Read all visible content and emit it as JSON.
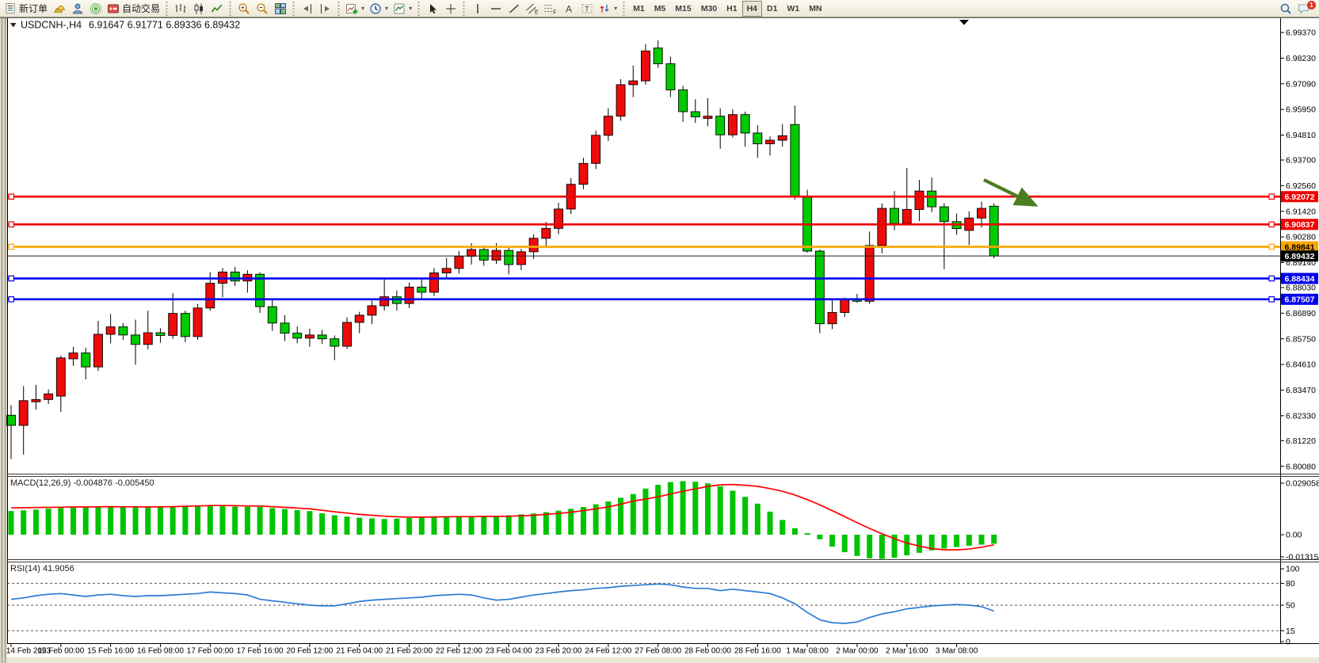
{
  "toolbar": {
    "new_order_label": "新订单",
    "autotrading_label": "自动交易",
    "timeframes": [
      "M1",
      "M5",
      "M15",
      "M30",
      "H1",
      "H4",
      "D1",
      "W1",
      "MN"
    ],
    "active_timeframe": "H4",
    "chat_badge": "1",
    "tool_glyphs": {
      "text": "A",
      "label": "T",
      "channel": "E",
      "fibonacci": "F"
    },
    "icons": [
      "new-order",
      "gold-bars",
      "terminal-user",
      "signal",
      "autotrading",
      "bar-chart",
      "candlestick-chart",
      "line-chart",
      "zoom-in",
      "zoom-out",
      "tile-windows",
      "shift-end",
      "auto-scroll",
      "new-chart",
      "periods",
      "templates",
      "cursor",
      "crosshair",
      "vertical-line",
      "horizontal-line",
      "trendline",
      "equidistant-channel",
      "fibonacci-retracement",
      "text",
      "text-label",
      "arrows",
      "search",
      "chat"
    ]
  },
  "chart": {
    "title": "USDCNH-,H4",
    "ohlc_line": "6.91647 6.91771 6.89336 6.89432",
    "hlines": [
      {
        "price": 6.92072,
        "label": "6.92072",
        "color": "#EE0000",
        "text_color": "#FFFFFF"
      },
      {
        "price": 6.90837,
        "label": "6.90837",
        "color": "#EE0000",
        "text_color": "#FFFFFF"
      },
      {
        "price": 6.89841,
        "label": "6.89841",
        "color": "#FFA500",
        "text_color": "#000000"
      },
      {
        "price": 6.88434,
        "label": "6.88434",
        "color": "#0000F0",
        "text_color": "#FFFFFF"
      },
      {
        "price": 6.87507,
        "label": "6.87507",
        "color": "#0000F0",
        "text_color": "#FFFFFF"
      }
    ],
    "bid": {
      "price": 6.89432,
      "label": "6.89432",
      "color": "#000000",
      "text_color": "#FFFFFF"
    },
    "colors": {
      "up": "#EE0B0B",
      "down": "#00CB00",
      "wick": "#000000",
      "macd_bar": "#00C400",
      "macd_signal": "#FF0000",
      "rsi": "#2B7BD4",
      "arrow": "#4C7D21"
    }
  },
  "indicators": {
    "macd": {
      "label": "MACD(12,26,9) -0.004876 -0.005450",
      "axis": [
        "0.029058",
        "0.00",
        "-0.013154"
      ]
    },
    "rsi": {
      "label": "RSI(14) 41.9056",
      "axis": [
        "100",
        "80",
        "50",
        "15",
        "0"
      ],
      "levels": [
        80,
        50,
        15
      ]
    }
  },
  "chart_data": {
    "type": "candlestick",
    "symbol": "USDCNH-",
    "timeframe": "H4",
    "last_ohlc": {
      "open": 6.91647,
      "high": 6.91771,
      "low": 6.89336,
      "close": 6.89432
    },
    "ylim": [
      6.7975,
      6.999
    ],
    "y_ticks": [
      "6.99370",
      "6.98230",
      "6.97090",
      "6.95950",
      "6.94810",
      "6.93700",
      "6.92560",
      "6.91420",
      "6.90280",
      "6.89140",
      "6.88030",
      "6.86890",
      "6.85750",
      "6.84610",
      "6.83470",
      "6.82330",
      "6.81220",
      "6.80080"
    ],
    "x_labels": [
      "14 Feb 2023",
      "15 Feb 00:00",
      "15 Feb 16:00",
      "16 Feb 08:00",
      "17 Feb 00:00",
      "17 Feb 16:00",
      "20 Feb 12:00",
      "21 Feb 04:00",
      "21 Feb 20:00",
      "22 Feb 12:00",
      "23 Feb 04:00",
      "23 Feb 20:00",
      "24 Feb 12:00",
      "27 Feb 08:00",
      "28 Feb 00:00",
      "28 Feb 16:00",
      "1 Mar 08:00",
      "2 Mar 00:00",
      "2 Mar 16:00",
      "3 Mar 08:00"
    ],
    "candles": [
      [
        6.8235,
        6.828,
        6.804,
        6.819
      ],
      [
        6.819,
        6.8365,
        6.806,
        6.83
      ],
      [
        6.8295,
        6.837,
        6.826,
        6.8305
      ],
      [
        6.8305,
        6.835,
        6.8285,
        6.833
      ],
      [
        6.832,
        6.85,
        6.825,
        6.849
      ],
      [
        6.8486,
        6.854,
        6.8455,
        6.8512
      ],
      [
        6.8512,
        6.8535,
        6.8395,
        6.845
      ],
      [
        6.845,
        6.8655,
        6.8432,
        6.8595
      ],
      [
        6.8595,
        6.8685,
        6.8555,
        6.8628
      ],
      [
        6.8628,
        6.8645,
        6.857,
        6.8592
      ],
      [
        6.8592,
        6.866,
        6.846,
        6.855
      ],
      [
        6.855,
        6.87,
        6.8528,
        6.8602
      ],
      [
        6.8602,
        6.8622,
        6.8558,
        6.859
      ],
      [
        6.859,
        6.8778,
        6.8575,
        6.8688
      ],
      [
        6.8688,
        6.87,
        6.856,
        6.8585
      ],
      [
        6.8585,
        6.873,
        6.857,
        6.8712
      ],
      [
        6.8712,
        6.8872,
        6.87,
        6.8822
      ],
      [
        6.8822,
        6.889,
        6.876,
        6.8872
      ],
      [
        6.8872,
        6.8895,
        6.881,
        6.8832
      ],
      [
        6.8832,
        6.888,
        6.878,
        6.8862
      ],
      [
        6.8862,
        6.887,
        6.869,
        6.8718
      ],
      [
        6.8718,
        6.875,
        6.861,
        6.8645
      ],
      [
        6.8645,
        6.868,
        6.8565,
        6.86
      ],
      [
        6.86,
        6.863,
        6.8555,
        6.8578
      ],
      [
        6.8578,
        6.862,
        6.854,
        6.8592
      ],
      [
        6.8592,
        6.8615,
        6.8552,
        6.8575
      ],
      [
        6.8575,
        6.859,
        6.848,
        6.8542
      ],
      [
        6.8542,
        6.867,
        6.853,
        6.8648
      ],
      [
        6.8648,
        6.8695,
        6.86,
        6.868
      ],
      [
        6.868,
        6.8745,
        6.864,
        6.8722
      ],
      [
        6.8722,
        6.884,
        6.87,
        6.8762
      ],
      [
        6.8762,
        6.879,
        6.87,
        6.8732
      ],
      [
        6.8732,
        6.8825,
        6.8712,
        6.8805
      ],
      [
        6.8805,
        6.884,
        6.8755,
        6.8782
      ],
      [
        6.8782,
        6.889,
        6.8765,
        6.8868
      ],
      [
        6.8868,
        6.8935,
        6.8845,
        6.8888
      ],
      [
        6.8888,
        6.8965,
        6.8865,
        6.8942
      ],
      [
        6.8942,
        6.9,
        6.8905,
        6.8972
      ],
      [
        6.8972,
        6.899,
        6.89,
        6.8925
      ],
      [
        6.8925,
        6.9,
        6.8908,
        6.8968
      ],
      [
        6.8968,
        6.8985,
        6.8862,
        6.8905
      ],
      [
        6.8905,
        6.8975,
        6.888,
        6.8962
      ],
      [
        6.8962,
        6.904,
        6.893,
        6.9022
      ],
      [
        6.9022,
        6.9095,
        6.8985,
        6.9066
      ],
      [
        6.9066,
        6.918,
        6.904,
        6.9152
      ],
      [
        6.9152,
        6.929,
        6.913,
        6.9262
      ],
      [
        6.9262,
        6.938,
        6.924,
        6.9355
      ],
      [
        6.9355,
        6.95,
        6.933,
        6.948
      ],
      [
        6.948,
        6.96,
        6.9455,
        6.9565
      ],
      [
        6.9565,
        6.973,
        6.9545,
        6.9705
      ],
      [
        6.9705,
        6.979,
        6.965,
        6.9722
      ],
      [
        6.9722,
        6.9885,
        6.9705,
        6.9855
      ],
      [
        6.9868,
        6.9902,
        6.978,
        6.9798
      ],
      [
        6.9798,
        6.983,
        6.965,
        6.9682
      ],
      [
        6.9682,
        6.97,
        6.954,
        6.9585
      ],
      [
        6.9585,
        6.964,
        6.9535,
        6.9562
      ],
      [
        6.9555,
        6.9645,
        6.952,
        6.9565
      ],
      [
        6.9565,
        6.96,
        6.942,
        6.9482
      ],
      [
        6.9482,
        6.9595,
        6.947,
        6.9572
      ],
      [
        6.9572,
        6.9585,
        6.943,
        6.949
      ],
      [
        6.949,
        6.9525,
        6.938,
        6.9442
      ],
      [
        6.9442,
        6.9475,
        6.939,
        6.9458
      ],
      [
        6.9458,
        6.953,
        6.943,
        6.9478
      ],
      [
        6.9528,
        6.9612,
        6.9195,
        6.921
      ],
      [
        6.921,
        6.9238,
        6.8958,
        6.8965
      ],
      [
        6.8965,
        6.8972,
        6.86,
        6.8642
      ],
      [
        6.8642,
        6.8755,
        6.8618,
        6.8692
      ],
      [
        6.8692,
        6.8758,
        6.8672,
        6.8752
      ],
      [
        6.8752,
        6.8775,
        6.8735,
        6.8742
      ],
      [
        6.8742,
        6.9052,
        6.873,
        6.899
      ],
      [
        6.899,
        6.9176,
        6.8955,
        6.9155
      ],
      [
        6.9155,
        6.9232,
        6.9058,
        6.9088
      ],
      [
        6.9088,
        6.9335,
        6.9078,
        6.915
      ],
      [
        6.915,
        6.9282,
        6.9098,
        6.9232
      ],
      [
        6.9232,
        6.9292,
        6.9138,
        6.9162
      ],
      [
        6.9162,
        6.9178,
        6.8885,
        6.9096
      ],
      [
        6.9096,
        6.9132,
        6.9038,
        6.9065
      ],
      [
        6.9057,
        6.9142,
        6.8992,
        6.9112
      ],
      [
        6.9112,
        6.9185,
        6.907,
        6.9155
      ],
      [
        6.91647,
        6.91771,
        6.89336,
        6.89432
      ]
    ],
    "macd_histogram": [
      0.0128,
      0.0132,
      0.0136,
      0.0141,
      0.0145,
      0.0147,
      0.0148,
      0.0149,
      0.015,
      0.0151,
      0.0151,
      0.0152,
      0.0152,
      0.0153,
      0.0154,
      0.0154,
      0.0155,
      0.0154,
      0.0152,
      0.0151,
      0.015,
      0.0144,
      0.0139,
      0.0133,
      0.0128,
      0.0116,
      0.0105,
      0.0098,
      0.0092,
      0.0088,
      0.0085,
      0.0087,
      0.009,
      0.0092,
      0.0095,
      0.0097,
      0.01,
      0.01,
      0.01,
      0.0102,
      0.0105,
      0.011,
      0.0115,
      0.0122,
      0.013,
      0.014,
      0.015,
      0.0165,
      0.018,
      0.02,
      0.022,
      0.025,
      0.027,
      0.0285,
      0.029,
      0.0287,
      0.0278,
      0.0262,
      0.0238,
      0.0205,
      0.0168,
      0.0125,
      0.008,
      0.0035,
      0.0008,
      -0.0025,
      -0.0065,
      -0.0095,
      -0.0115,
      -0.0128,
      -0.0131,
      -0.0125,
      -0.0112,
      -0.0098,
      -0.0085,
      -0.0075,
      -0.0067,
      -0.006,
      -0.0054,
      -0.0049
    ],
    "macd_signal": [
      0.0145,
      0.0146,
      0.0147,
      0.0148,
      0.0149,
      0.015,
      0.015,
      0.0151,
      0.0152,
      0.0151,
      0.0151,
      0.015,
      0.0151,
      0.0152,
      0.0154,
      0.0156,
      0.0158,
      0.0158,
      0.0157,
      0.0156,
      0.0155,
      0.0152,
      0.0148,
      0.0144,
      0.014,
      0.0132,
      0.0124,
      0.0117,
      0.011,
      0.0105,
      0.01,
      0.0097,
      0.0095,
      0.0095,
      0.0096,
      0.0097,
      0.0098,
      0.0098,
      0.0099,
      0.0099,
      0.01,
      0.0102,
      0.0105,
      0.011,
      0.0115,
      0.0122,
      0.013,
      0.014,
      0.015,
      0.0165,
      0.0182,
      0.0193,
      0.0205,
      0.022,
      0.0235,
      0.0248,
      0.0262,
      0.027,
      0.0272,
      0.0268,
      0.0262,
      0.025,
      0.0235,
      0.0215,
      0.019,
      0.0162,
      0.013,
      0.0098,
      0.0065,
      0.0034,
      0.0005,
      -0.0022,
      -0.0045,
      -0.0062,
      -0.0075,
      -0.0082,
      -0.0082,
      -0.0078,
      -0.0068,
      -0.0055
    ],
    "rsi": [
      58,
      60,
      63,
      65,
      66,
      64,
      62,
      64,
      65,
      63,
      62,
      63,
      63,
      64,
      65,
      66,
      68,
      67,
      66,
      64,
      58,
      56,
      54,
      52,
      50,
      49,
      49,
      52,
      55,
      57,
      58,
      59,
      60,
      61,
      63,
      64,
      65,
      64,
      60,
      57,
      58,
      61,
      64,
      66,
      68,
      70,
      71,
      73,
      74,
      76,
      77,
      78,
      79,
      78,
      75,
      73,
      73,
      70,
      72,
      70,
      68,
      66,
      60,
      52,
      40,
      30,
      26,
      25,
      27,
      33,
      38,
      41,
      45,
      47,
      49,
      50,
      51,
      50,
      48,
      41.9
    ]
  }
}
